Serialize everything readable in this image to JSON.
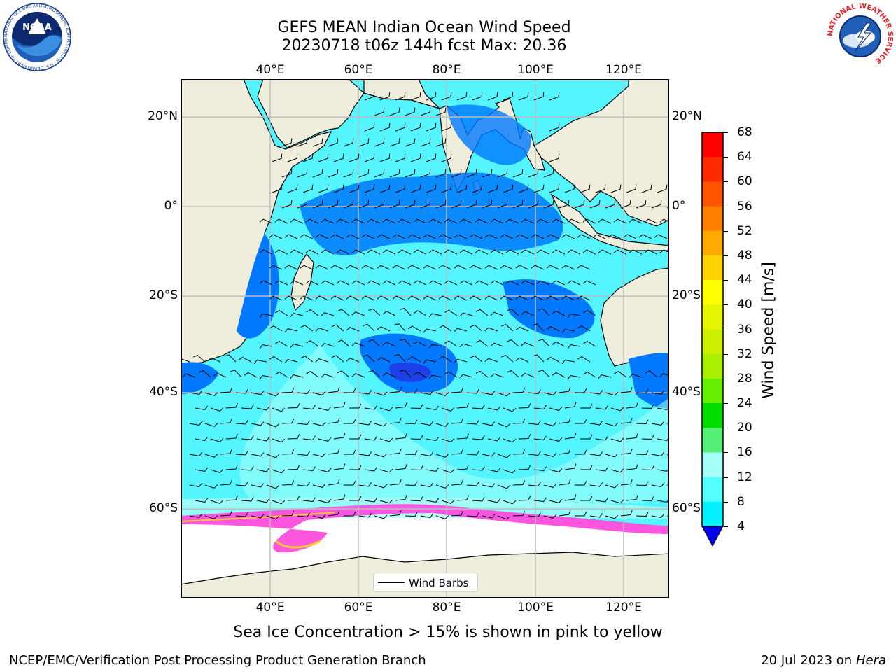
{
  "title": {
    "line1": "GEFS MEAN Indian Ocean Wind Speed",
    "line2": "20230718 t06z 144h fcst   Max: 20.36"
  },
  "axes": {
    "lon_labels": [
      "40°E",
      "60°E",
      "80°E",
      "100°E",
      "120°E"
    ],
    "lat_labels": [
      "20°N",
      "0°",
      "20°S",
      "40°S",
      "60°S"
    ]
  },
  "colorbar": {
    "title": "Wind Speed [m/s]",
    "ticks": [
      "68",
      "64",
      "60",
      "56",
      "52",
      "48",
      "44",
      "40",
      "36",
      "32",
      "28",
      "24",
      "20",
      "16",
      "12",
      "8",
      "4"
    ],
    "colors": [
      "#ff0000",
      "#ff2a00",
      "#ff5500",
      "#ff8000",
      "#ffaa00",
      "#ffd400",
      "#ffff00",
      "#e6f500",
      "#cff000",
      "#a8f000",
      "#66ee00",
      "#00dd00",
      "#55ee77",
      "#a6fff8",
      "#55ffff",
      "#00f0ff",
      "#0077ff"
    ],
    "extend_color": "#0000ee"
  },
  "legend": {
    "label": "Wind Barbs"
  },
  "caption": "Sea Ice Concentration > 15% is shown in pink to yellow",
  "footer": {
    "left": "NCEP/EMC/Verification Post Processing Product Generation Branch",
    "right_date": "20 Jul 2023 on",
    "right_host": "Hera"
  },
  "logos": {
    "noaa_text": "NOAA",
    "noaa_ring": "NATIONAL OCEANIC AND ATMOSPHERIC ADMINISTRATION · U.S. DEPARTMENT OF COMMERCE",
    "nws_ring": "NATIONAL WEATHER SERVICE"
  }
}
